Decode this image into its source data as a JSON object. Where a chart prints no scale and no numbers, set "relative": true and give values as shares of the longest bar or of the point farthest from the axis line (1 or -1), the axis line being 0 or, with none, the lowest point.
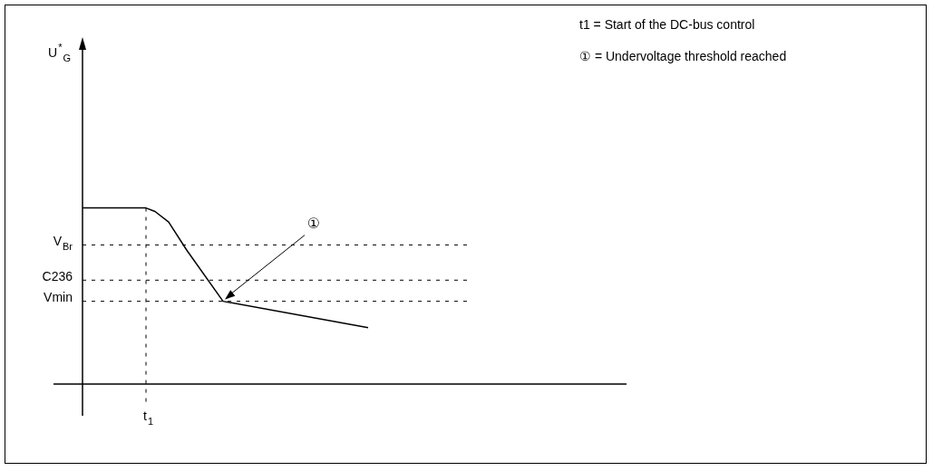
{
  "chart_data": {
    "type": "line",
    "relative": true,
    "categories": [
      null,
      null,
      null,
      null,
      null,
      null,
      null,
      null,
      null,
      null,
      null,
      null,
      null,
      null,
      null,
      null,
      null,
      null,
      null,
      null,
      null,
      null,
      null,
      null,
      null,
      null,
      null,
      null,
      null,
      null,
      null,
      null,
      null,
      null,
      null,
      null,
      null,
      null,
      null,
      null,
      null,
      null,
      null,
      null,
      null,
      null,
      null,
      null,
      null,
      null,
      null,
      null,
      null,
      null,
      null,
      null,
      null,
      null,
      null,
      null,
      null,
      null,
      null,
      null
    ],
    "series": [
      {
        "color": "#000000",
        "values": [
          1,
          null,
          null,
          null,
          null,
          null,
          null,
          null,
          null,
          null,
          null,
          null,
          null,
          null,
          1,
          null,
          0.98,
          null,
          null,
          0.92,
          null,
          null,
          null,
          0.76,
          null,
          null,
          null,
          null,
          null,
          null,
          null,
          0.47,
          null,
          null,
          null,
          null,
          null,
          null,
          null,
          null,
          null,
          null,
          null,
          null,
          null,
          null,
          null,
          null,
          null,
          null,
          null,
          null,
          null,
          null,
          null,
          null,
          null,
          null,
          null,
          null,
          null,
          null,
          null,
          0.32
        ]
      }
    ],
    "marker": "none",
    "line_style": "solid",
    "ref_lines": [
      {
        "axis": "y",
        "value": 0.79,
        "label": "V$_{Br}$",
        "line_style": "dashed"
      },
      {
        "axis": "y",
        "value": 0.59,
        "label": "C236",
        "line_style": "dashed"
      },
      {
        "axis": "y",
        "value": 0.47,
        "label": "Vmin",
        "line_style": "dashed"
      }
    ],
    "annotations": [
      "U$^{*}$$_{G}$",
      "①",
      "t$_{1}$",
      "t1 =  Start of the DC-bus control",
      "① =  Undervoltage threshold reached"
    ]
  }
}
